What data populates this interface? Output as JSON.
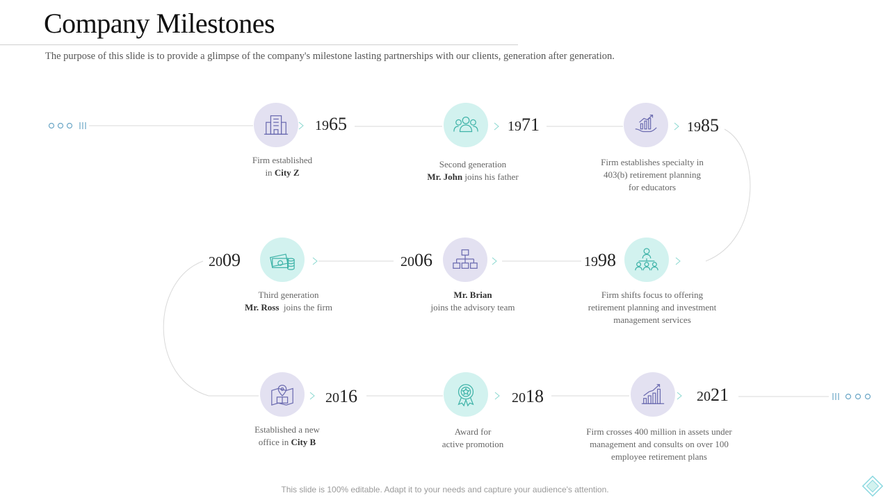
{
  "title": "Company Milestones",
  "subtitle": "The purpose of this slide is to provide a glimpse of the company's milestone lasting partnerships with our clients, generation after generation.",
  "footer": "This slide is 100% editable. Adapt it to your needs and capture your audience's attention.",
  "milestones": [
    {
      "year_prefix": "19",
      "year_suffix": "65",
      "icon": "building-icon",
      "line1": "Firm established",
      "line2_pre": "in ",
      "line2_bold": "City Z",
      "line2_post": "",
      "line3": ""
    },
    {
      "year_prefix": "19",
      "year_suffix": "71",
      "icon": "people-group-icon",
      "line1": "Second generation",
      "line2_pre": "",
      "line2_bold": "Mr. John",
      "line2_post": " joins his father",
      "line3": ""
    },
    {
      "year_prefix": "19",
      "year_suffix": "85",
      "icon": "growth-chart-hand-icon",
      "line1": "Firm establishes specialty in",
      "line2_pre": "403(b) retirement planning",
      "line2_bold": "",
      "line2_post": "",
      "line3": "for educators"
    },
    {
      "year_prefix": "19",
      "year_suffix": "98",
      "icon": "team-network-icon",
      "line1": "Firm shifts focus to offering",
      "line2_pre": "retirement planning and investment",
      "line2_bold": "",
      "line2_post": "",
      "line3": "management services"
    },
    {
      "year_prefix": "20",
      "year_suffix": "06",
      "icon": "org-chart-icon",
      "line1": "",
      "line2_pre": "",
      "line2_bold": "Mr. Brian",
      "line2_post": "",
      "line3": "joins the advisory team"
    },
    {
      "year_prefix": "20",
      "year_suffix": "09",
      "icon": "money-coins-icon",
      "line1": "Third generation",
      "line2_pre": "",
      "line2_bold": "Mr. Ross",
      "line2_post": "  joins the firm",
      "line3": ""
    },
    {
      "year_prefix": "20",
      "year_suffix": "16",
      "icon": "location-office-icon",
      "line1": "Established a new",
      "line2_pre": "office in ",
      "line2_bold": "City B",
      "line2_post": "",
      "line3": ""
    },
    {
      "year_prefix": "20",
      "year_suffix": "18",
      "icon": "award-badge-icon",
      "line1": "Award for",
      "line2_pre": "active promotion",
      "line2_bold": "",
      "line2_post": "",
      "line3": ""
    },
    {
      "year_prefix": "20",
      "year_suffix": "21",
      "icon": "bar-growth-icon",
      "line1": "Firm crosses 400 million in assets under",
      "line2_pre": "management and consults on over 100",
      "line2_bold": "",
      "line2_post": "",
      "line3": "employee retirement plans"
    }
  ],
  "colors": {
    "purple_circle": "#e3e1f1",
    "teal_circle": "#d2f2ef",
    "icon_purple": "#6b6bb0",
    "icon_teal": "#3fb3a8",
    "connector": "#d9d9d9",
    "dot_marker": "#6aa6c6"
  }
}
